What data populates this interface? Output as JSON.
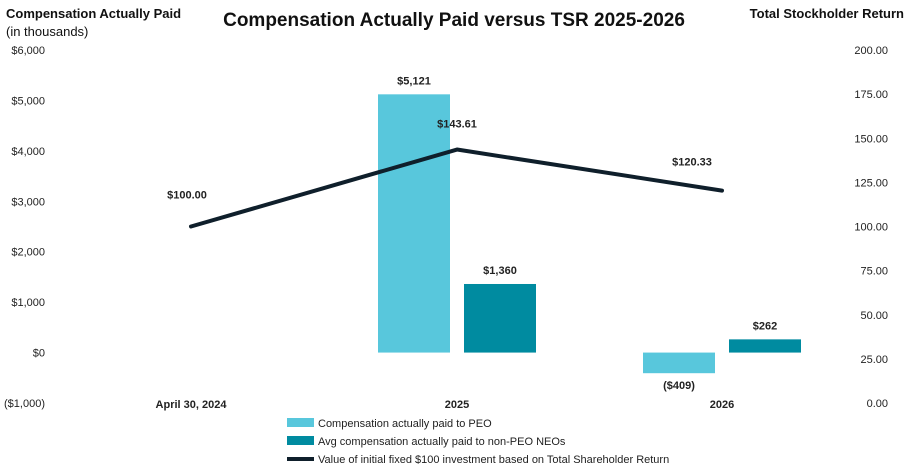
{
  "chart_data": {
    "type": "bar",
    "title": "Compensation Actually Paid versus TSR 2025-2026",
    "left_axis": {
      "label_line1": "Compensation Actually Paid",
      "label_line2": "(in thousands)",
      "ylim": [
        -1000,
        6000
      ],
      "ticks": [
        {
          "value": 6000,
          "label": "$6,000"
        },
        {
          "value": 5000,
          "label": "$5,000"
        },
        {
          "value": 4000,
          "label": "$4,000"
        },
        {
          "value": 3000,
          "label": "$3,000"
        },
        {
          "value": 2000,
          "label": "$2,000"
        },
        {
          "value": 1000,
          "label": "$1,000"
        },
        {
          "value": 0,
          "label": "$0"
        },
        {
          "value": -1000,
          "label": "($1,000)"
        }
      ]
    },
    "right_axis": {
      "label": "Total Stockholder Return",
      "ylim": [
        0,
        200
      ],
      "ticks": [
        {
          "value": 200,
          "label": "200.00"
        },
        {
          "value": 175,
          "label": "175.00"
        },
        {
          "value": 150,
          "label": "150.00"
        },
        {
          "value": 125,
          "label": "125.00"
        },
        {
          "value": 100,
          "label": "100.00"
        },
        {
          "value": 75,
          "label": "75.00"
        },
        {
          "value": 50,
          "label": "50.00"
        },
        {
          "value": 25,
          "label": "25.00"
        },
        {
          "value": 0,
          "label": "0.00"
        }
      ]
    },
    "categories": [
      "April 30, 2024",
      "2025",
      "2026"
    ],
    "series": [
      {
        "name": "Compensation actually paid to PEO",
        "kind": "bar",
        "axis": "left",
        "color": "#58c7dc",
        "values": [
          null,
          5121,
          -409
        ],
        "labels": [
          "",
          "$5,121",
          "($409)"
        ]
      },
      {
        "name": "Avg compensation actually paid to non-PEO NEOs",
        "kind": "bar",
        "axis": "left",
        "color": "#008ba0",
        "values": [
          null,
          1360,
          262
        ],
        "labels": [
          "",
          "$1,360",
          "$262"
        ]
      },
      {
        "name": "Value of initial fixed $100 investment based on Total Shareholder Return",
        "kind": "line",
        "axis": "right",
        "color": "#0f1f2b",
        "values": [
          100.0,
          143.61,
          120.33
        ],
        "labels": [
          "$100.00",
          "$143.61",
          "$120.33"
        ]
      }
    ],
    "legend_position": "bottom",
    "grid": false
  }
}
